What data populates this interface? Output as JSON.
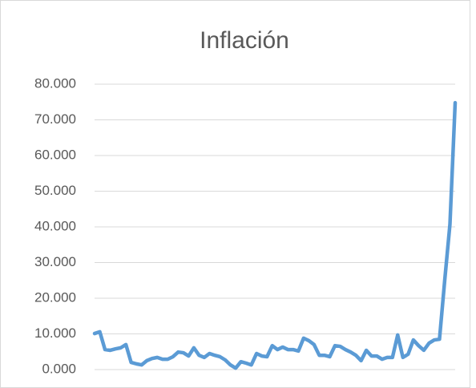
{
  "chart_data": {
    "type": "line",
    "title": "Inflación",
    "values": [
      10.1,
      10.6,
      5.6,
      5.4,
      5.8,
      6.1,
      7.0,
      2.0,
      1.6,
      1.3,
      2.5,
      3.1,
      3.4,
      2.9,
      2.9,
      3.6,
      4.9,
      4.7,
      3.8,
      6.1,
      4.0,
      3.4,
      4.5,
      4.0,
      3.6,
      2.7,
      1.3,
      0.4,
      2.2,
      1.8,
      1.3,
      4.5,
      3.8,
      3.6,
      6.7,
      5.6,
      6.3,
      5.6,
      5.6,
      5.2,
      8.8,
      8.1,
      7.0,
      4.0,
      4.0,
      3.6,
      6.7,
      6.5,
      5.6,
      4.9,
      4.0,
      2.5,
      5.4,
      3.8,
      3.8,
      2.9,
      3.4,
      3.4,
      9.7,
      3.4,
      4.3,
      8.3,
      6.7,
      5.4,
      7.4,
      8.3,
      8.5,
      25.0,
      40.7,
      74.8
    ],
    "color": "#5b9bd5",
    "ylim": [
      0,
      80
    ],
    "yticks": [
      {
        "value": 0,
        "label": "0.000"
      },
      {
        "value": 10,
        "label": "10.000"
      },
      {
        "value": 20,
        "label": "20.000"
      },
      {
        "value": 30,
        "label": "30.000"
      },
      {
        "value": 40,
        "label": "40.000"
      },
      {
        "value": 50,
        "label": "50.000"
      },
      {
        "value": 60,
        "label": "60.000"
      },
      {
        "value": 70,
        "label": "70.000"
      },
      {
        "value": 80,
        "label": "80.000"
      }
    ],
    "grid": true
  }
}
